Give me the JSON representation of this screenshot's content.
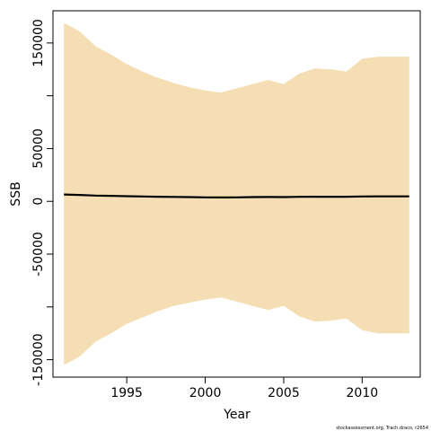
{
  "chart_data": {
    "type": "area",
    "title": "",
    "xlabel": "Year",
    "ylabel": "SSB",
    "xlim": [
      1990.3,
      2013.7
    ],
    "ylim": [
      -166500,
      180500
    ],
    "x_ticks": [
      1995,
      2000,
      2005,
      2010
    ],
    "x_tick_labels": [
      "1995",
      "2000",
      "2005",
      "2010"
    ],
    "y_ticks": [
      150000,
      100000,
      50000,
      0,
      -50000,
      -100000,
      -150000
    ],
    "y_tick_labels": [
      "150000",
      "",
      "50000",
      "0",
      "-50000",
      "",
      "-150000"
    ],
    "grid": false,
    "colors": {
      "band": "#f5deb3",
      "line": "#000000"
    },
    "years": [
      1991,
      1992,
      1993,
      1994,
      1995,
      1996,
      1997,
      1998,
      1999,
      2000,
      2001,
      2002,
      2003,
      2004,
      2005,
      2006,
      2007,
      2008,
      2009,
      2010,
      2011,
      2012,
      2013
    ],
    "series": [
      {
        "values": [
          6500,
          6100,
          5500,
          5200,
          4900,
          4600,
          4400,
          4200,
          4000,
          3800,
          3700,
          3800,
          4000,
          4100,
          4000,
          4300,
          4400,
          4400,
          4400,
          4600,
          4700,
          4700,
          4700
        ]
      },
      {
        "values": [
          169000,
          161000,
          147000,
          139000,
          130000,
          123000,
          117000,
          112000,
          108000,
          105000,
          103000,
          107000,
          111000,
          115000,
          111000,
          121000,
          126000,
          125000,
          123000,
          135000,
          137000,
          137000,
          137000
        ]
      },
      {
        "values": [
          -155000,
          -147000,
          -133000,
          -125000,
          -116000,
          -110000,
          -104000,
          -99000,
          -96000,
          -93000,
          -91000,
          -95000,
          -99000,
          -103000,
          -99000,
          -109000,
          -114000,
          -113000,
          -111000,
          -122000,
          -125000,
          -125000,
          -125000
        ]
      }
    ]
  },
  "caption": "stockassessment.org, Trach.draco, r2654"
}
